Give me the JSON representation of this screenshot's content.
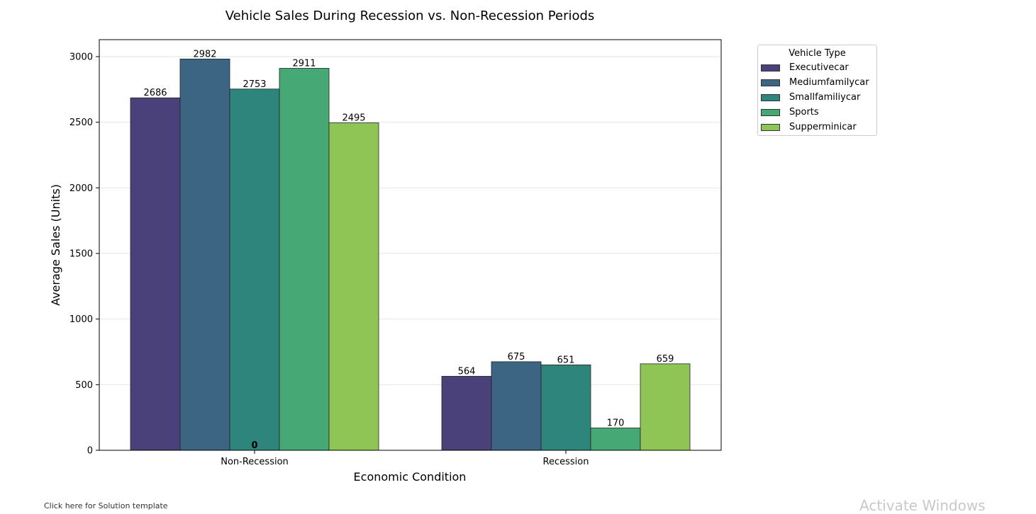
{
  "chart_data": {
    "type": "bar",
    "title": "Vehicle Sales During Recession vs. Non-Recession Periods",
    "xlabel": "Economic Condition",
    "ylabel": "Average Sales (Units)",
    "categories": [
      "Non-Recession",
      "Recession"
    ],
    "ylim": [
      0,
      3120
    ],
    "yticks": [
      0,
      500,
      1000,
      1500,
      2000,
      2500,
      3000
    ],
    "grid": "horizontal",
    "legend": {
      "title": "Vehicle Type",
      "position": "outside-top-right"
    },
    "series": [
      {
        "name": "Executivecar",
        "color": "#4b417a",
        "values": [
          2686,
          564
        ]
      },
      {
        "name": "Mediumfamilycar",
        "color": "#3c6583",
        "values": [
          2982,
          675
        ]
      },
      {
        "name": "Smallfamiliycar",
        "color": "#2e857c",
        "values": [
          2753,
          651
        ]
      },
      {
        "name": "Sports",
        "color": "#46a874",
        "values": [
          2911,
          170
        ]
      },
      {
        "name": "Supperminicar",
        "color": "#8fc555",
        "values": [
          2495,
          659
        ]
      }
    ],
    "annotations": [
      {
        "text": "0",
        "category": "Non-Recession",
        "y": 0
      }
    ]
  },
  "footer": {
    "note": "Click here for Solution template",
    "watermark": "Activate Windows"
  }
}
